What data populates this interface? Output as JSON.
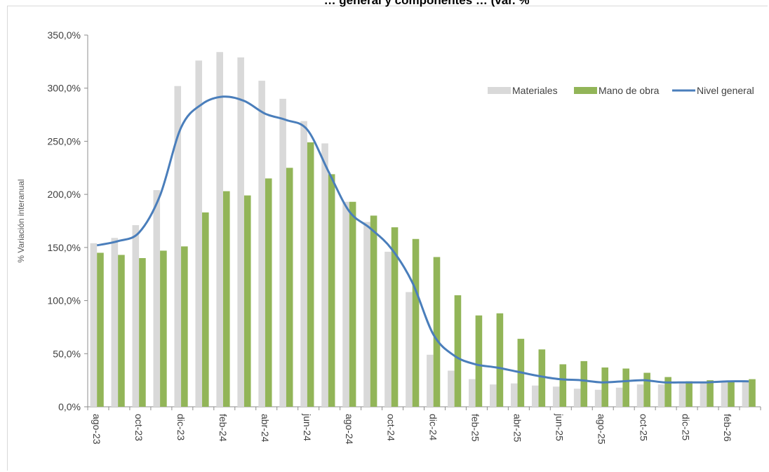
{
  "chart_data": {
    "type": "bar",
    "title": "… Nivel general y componentes … (var. % i.a.)",
    "title_visible_part": "… general y componentes … (var. %",
    "ylabel": "% Variación interanual",
    "ylim": [
      0,
      350
    ],
    "yticks": [
      "0,0%",
      "50,0%",
      "100,0%",
      "150,0%",
      "200,0%",
      "250,0%",
      "300,0%",
      "350,0%"
    ],
    "categories": [
      "ago-23",
      "sep-23",
      "oct-23",
      "nov-23",
      "dic-23",
      "ene-24",
      "feb-24",
      "mar-24",
      "abr-24",
      "may-24",
      "jun-24",
      "jul-24",
      "ago-24",
      "sep-24",
      "oct-24",
      "nov-24",
      "dic-24",
      "ene-25",
      "feb-25",
      "mar-25",
      "abr-25",
      "may-25",
      "jun-25",
      "jul-25",
      "ago-25",
      "sep-25",
      "oct-25",
      "nov-25",
      "dic-25",
      "ene-26",
      "feb-26",
      "mar-26"
    ],
    "xtick_labels": [
      "ago-23",
      "",
      "oct-23",
      "",
      "dic-23",
      "",
      "feb-24",
      "",
      "abr-24",
      "",
      "jun-24",
      "",
      "ago-24",
      "",
      "oct-24",
      "",
      "dic-24",
      "",
      "feb-25",
      "",
      "abr-25",
      "",
      "jun-25",
      "",
      "ago-25",
      "",
      "oct-25",
      "",
      "dic-25",
      "",
      "feb-26",
      ""
    ],
    "legend_position": "top-right",
    "series": [
      {
        "name": "Materiales",
        "type": "bar",
        "color": "#d9d9d9",
        "values": [
          154,
          159,
          171,
          204,
          302,
          326,
          334,
          329,
          307,
          290,
          269,
          248,
          193,
          174,
          146,
          108,
          49,
          34,
          26,
          21,
          22,
          20,
          19,
          17,
          16,
          18,
          21,
          21,
          22,
          23,
          24,
          24
        ]
      },
      {
        "name": "Mano de obra",
        "type": "bar",
        "color": "#92b558",
        "values": [
          145,
          143,
          140,
          147,
          151,
          183,
          203,
          199,
          215,
          225,
          249,
          219,
          193,
          180,
          169,
          158,
          141,
          105,
          86,
          88,
          64,
          54,
          40,
          43,
          37,
          36,
          32,
          28,
          24,
          25,
          24,
          26
        ]
      },
      {
        "name": "Nivel general",
        "type": "line",
        "color": "#4a7ebb",
        "values": [
          152,
          156,
          164,
          199,
          263,
          285,
          292,
          288,
          276,
          270,
          261,
          222,
          184,
          168,
          149,
          117,
          68,
          48,
          40,
          37,
          33,
          29,
          26,
          25,
          23,
          24,
          25,
          23,
          23,
          23,
          24,
          24
        ]
      }
    ]
  }
}
